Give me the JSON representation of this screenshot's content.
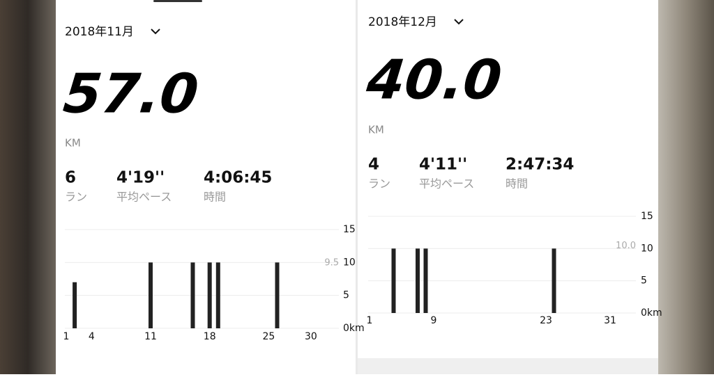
{
  "panels": [
    {
      "month": "2018年11月",
      "distance": "57.0",
      "unit": "KM",
      "stats": [
        {
          "value": "6",
          "label": "ラン"
        },
        {
          "value": "4'19''",
          "label": "平均ペース"
        },
        {
          "value": "4:06:45",
          "label": "時間"
        }
      ],
      "chart": {
        "type": "bar",
        "days": [
          2,
          11,
          16,
          18,
          19,
          26
        ],
        "values": [
          7,
          10,
          10,
          10,
          10,
          10
        ],
        "color": "#222222",
        "xlim": [
          1,
          31
        ],
        "xticks": [
          1,
          4,
          11,
          18,
          25,
          30
        ],
        "ylim": [
          0,
          15
        ],
        "yticks": [
          {
            "value": 0,
            "label": "0km"
          },
          5,
          10,
          15
        ],
        "average": 9.5
      }
    },
    {
      "month": "2018年12月",
      "distance": "40.0",
      "unit": "KM",
      "stats": [
        {
          "value": "4",
          "label": "ラン"
        },
        {
          "value": "4'11''",
          "label": "平均ペース"
        },
        {
          "value": "2:47:34",
          "label": "時間"
        }
      ],
      "chart": {
        "type": "bar",
        "days": [
          4,
          7,
          8,
          24
        ],
        "values": [
          10,
          10,
          10,
          10
        ],
        "color": "#222222",
        "xlim": [
          1,
          31
        ],
        "xticks": [
          1,
          9,
          23,
          31
        ],
        "ylim": [
          0,
          15
        ],
        "yticks": [
          {
            "value": 0,
            "label": "0km"
          },
          5,
          10,
          15
        ],
        "average": {
          "value": 10,
          "label": "10.0"
        }
      }
    }
  ]
}
